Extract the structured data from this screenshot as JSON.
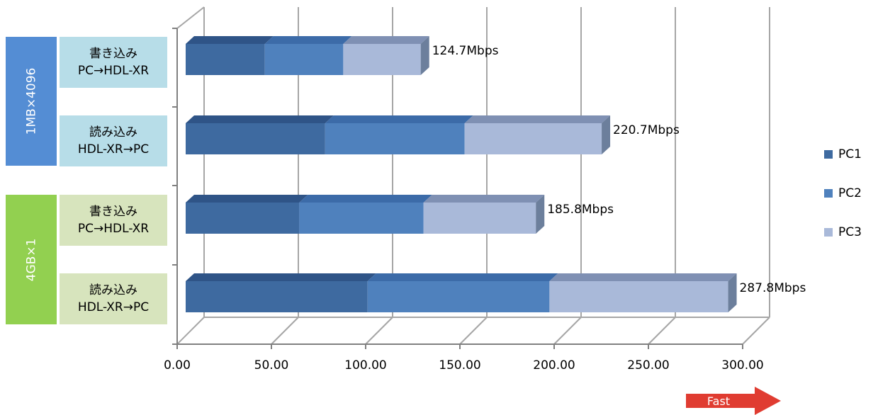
{
  "chart_data": {
    "type": "bar",
    "orientation": "horizontal",
    "stacked": true,
    "groups": [
      {
        "label": "1MB×4096",
        "color": "#548dd4"
      },
      {
        "label": "4GB×1",
        "color": "#92d050"
      }
    ],
    "categories": [
      {
        "line1": "書き込み",
        "line2": "PC→HDL-XR",
        "group": 0,
        "bg": "#b7dde8"
      },
      {
        "line1": "読み込み",
        "line2": "HDL-XR→PC",
        "group": 0,
        "bg": "#b7dde8"
      },
      {
        "line1": "書き込み",
        "line2": "PC→HDL-XR",
        "group": 1,
        "bg": "#d7e4bd"
      },
      {
        "line1": "読み込み",
        "line2": "HDL-XR→PC",
        "group": 1,
        "bg": "#d7e4bd"
      }
    ],
    "series": [
      {
        "name": "PC1",
        "values": [
          42.0,
          74.0,
          60.3,
          96.5
        ],
        "color": "#3e6aa0",
        "top": "#2f5487",
        "side": "#274873"
      },
      {
        "name": "PC2",
        "values": [
          41.6,
          74.0,
          65.9,
          96.5
        ],
        "color": "#4f81bd",
        "top": "#3c6ba8",
        "side": "#34608f"
      },
      {
        "name": "PC3",
        "values": [
          41.1,
          72.7,
          59.6,
          94.8
        ],
        "color": "#a9b9d9",
        "top": "#7f90b3",
        "side": "#6c7f9c"
      }
    ],
    "totals": [
      "124.7Mbps",
      "220.7Mbps",
      "185.8Mbps",
      "287.8Mbps"
    ],
    "x_ticks": [
      "0.00",
      "50.00",
      "100.00",
      "150.00",
      "200.00",
      "250.00",
      "300.00"
    ],
    "xlim": [
      0,
      300
    ],
    "grid": true,
    "legend_position": "right"
  },
  "arrow": {
    "label": "Fast",
    "color": "#e03c31"
  }
}
